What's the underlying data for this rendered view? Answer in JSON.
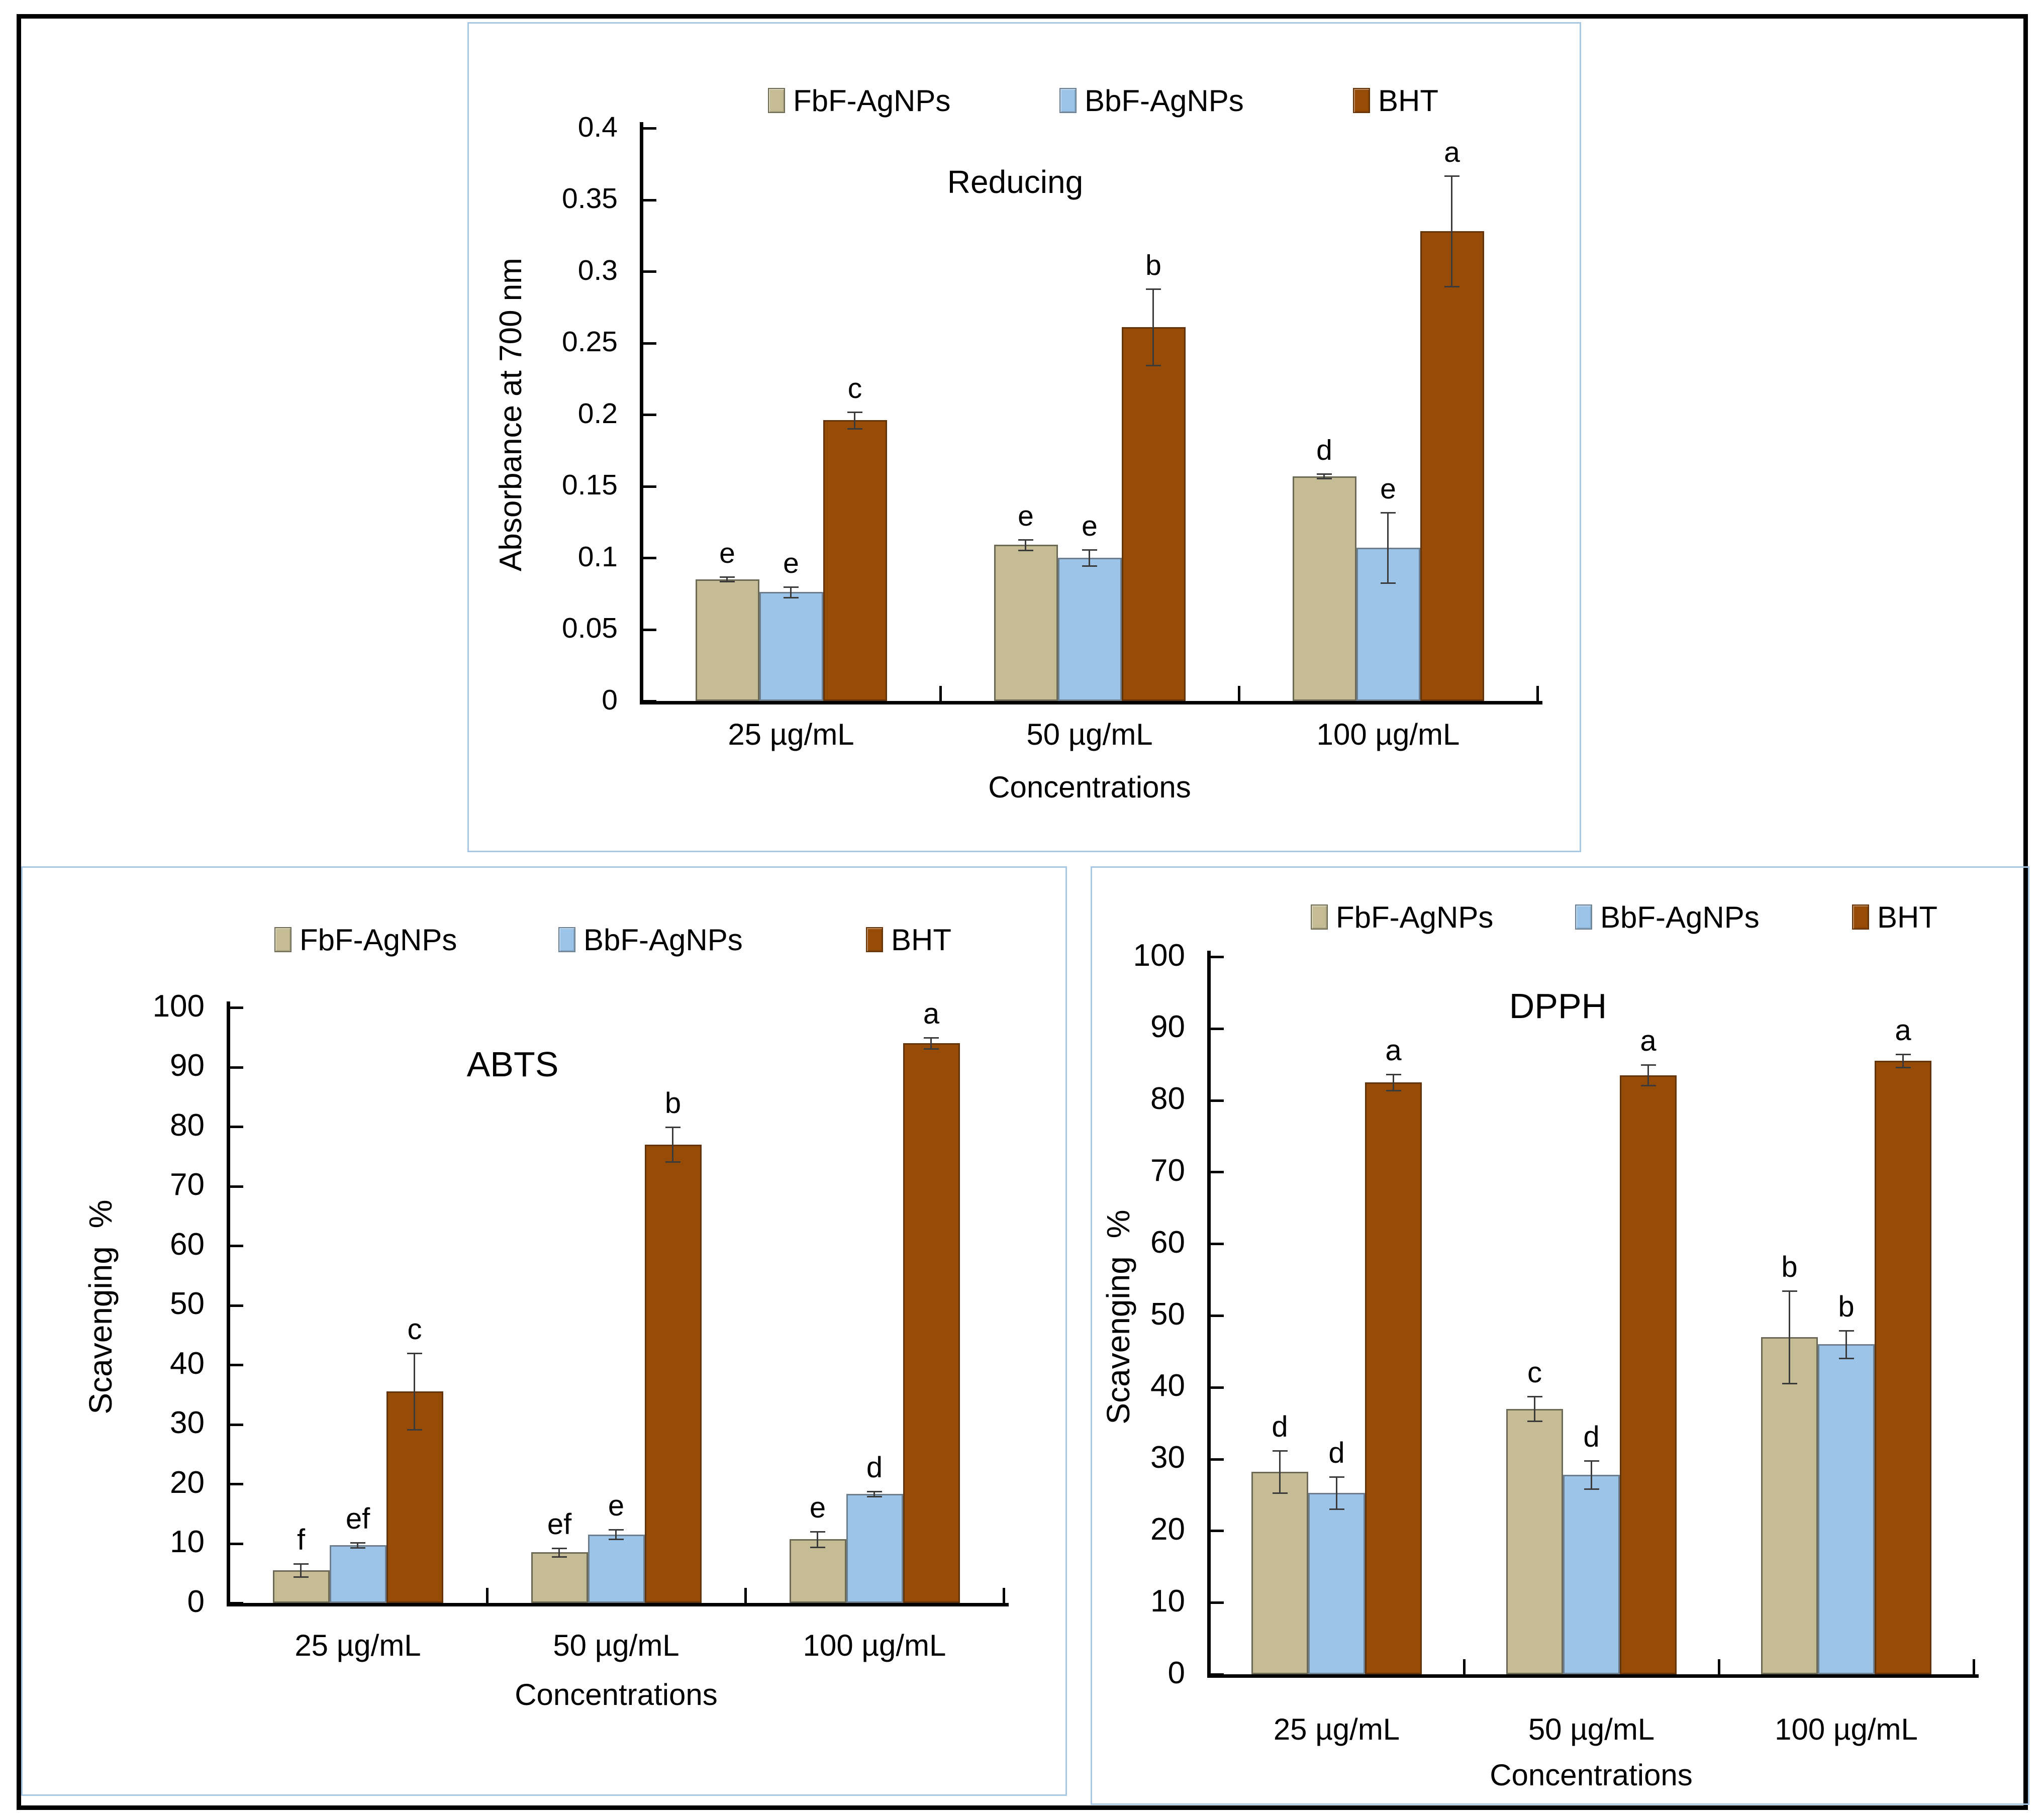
{
  "colors": {
    "outer_border": "#000000",
    "panel_border": "#a8c7e4",
    "axis": "#000000",
    "error_bar": "#3a3a3a"
  },
  "chart_data": [
    {
      "id": "reducing",
      "type": "bar",
      "title": "Reducing",
      "ylabel": "Absorbance at 700 nm",
      "xlabel": "Concentrations",
      "categories": [
        "25 µg/mL",
        "50 µg/mL",
        "100 µg/mL"
      ],
      "ylim": [
        0,
        0.4
      ],
      "ytick_step": 0.05,
      "ytick_labels": [
        "0",
        "0.05",
        "0.1",
        "0.15",
        "0.2",
        "0.25",
        "0.3",
        "0.35",
        "0.4"
      ],
      "legend_position": "top",
      "grid": false,
      "series": [
        {
          "name": "FbF-AgNPs",
          "color": "#c5bc95",
          "border": "#6c6a55",
          "values": [
            0.085,
            0.109,
            0.157
          ],
          "errors": [
            0.002,
            0.004,
            0.002
          ],
          "letters": [
            "e",
            "e",
            "d"
          ]
        },
        {
          "name": "BbF-AgNPs",
          "color": "#9cc4e8",
          "border": "#6d7f8f",
          "values": [
            0.076,
            0.1,
            0.107
          ],
          "errors": [
            0.004,
            0.006,
            0.025
          ],
          "letters": [
            "e",
            "e",
            "e"
          ]
        },
        {
          "name": "BHT",
          "color": "#964b06",
          "border": "#63340a",
          "values": [
            0.196,
            0.261,
            0.328
          ],
          "errors": [
            0.006,
            0.027,
            0.039
          ],
          "letters": [
            "c",
            "b",
            "a"
          ]
        }
      ]
    },
    {
      "id": "abts",
      "type": "bar",
      "title": "ABTS",
      "ylabel": "Scavenging %",
      "xlabel": "Concentrations",
      "categories": [
        "25 µg/mL",
        "50 µg/mL",
        "100 µg/mL"
      ],
      "ylim": [
        0,
        100
      ],
      "ytick_step": 10,
      "ytick_labels": [
        "0",
        "10",
        "20",
        "30",
        "40",
        "50",
        "60",
        "70",
        "80",
        "90",
        "100"
      ],
      "legend_position": "top",
      "grid": false,
      "series": [
        {
          "name": "FbF-AgNPs",
          "color": "#c5bc95",
          "border": "#6c6a55",
          "values": [
            5.5,
            8.5,
            10.7
          ],
          "errors": [
            1.2,
            0.8,
            1.4
          ],
          "letters": [
            "f",
            "ef",
            "e"
          ]
        },
        {
          "name": "BbF-AgNPs",
          "color": "#9cc4e8",
          "border": "#6d7f8f",
          "values": [
            9.7,
            11.5,
            18.3
          ],
          "errors": [
            0.5,
            0.9,
            0.5
          ],
          "letters": [
            "ef",
            "e",
            "d"
          ]
        },
        {
          "name": "BHT",
          "color": "#964b06",
          "border": "#63340a",
          "values": [
            35.5,
            77,
            94
          ],
          "errors": [
            6.5,
            3,
            1
          ],
          "letters": [
            "c",
            "b",
            "a"
          ]
        }
      ]
    },
    {
      "id": "dpph",
      "type": "bar",
      "title": "DPPH",
      "ylabel": "Scavenging %",
      "xlabel": "Concentrations",
      "categories": [
        "25 µg/mL",
        "50 µg/mL",
        "100 µg/mL"
      ],
      "ylim": [
        0,
        100
      ],
      "ytick_step": 10,
      "ytick_labels": [
        "0",
        "10",
        "20",
        "30",
        "40",
        "50",
        "60",
        "70",
        "80",
        "90",
        "100"
      ],
      "legend_position": "top",
      "grid": false,
      "series": [
        {
          "name": "FbF-AgNPs",
          "color": "#c5bc95",
          "border": "#6c6a55",
          "values": [
            28.2,
            37,
            47
          ],
          "errors": [
            3.0,
            1.8,
            6.5
          ],
          "letters": [
            "d",
            "c",
            "b"
          ]
        },
        {
          "name": "BbF-AgNPs",
          "color": "#9cc4e8",
          "border": "#6d7f8f",
          "values": [
            25.3,
            27.8,
            46
          ],
          "errors": [
            2.3,
            2.0,
            2.0
          ],
          "letters": [
            "d",
            "d",
            "b"
          ]
        },
        {
          "name": "BHT",
          "color": "#964b06",
          "border": "#63340a",
          "values": [
            82.5,
            83.5,
            85.5
          ],
          "errors": [
            1.2,
            1.5,
            1.0
          ],
          "letters": [
            "a",
            "a",
            "a"
          ]
        }
      ]
    }
  ]
}
